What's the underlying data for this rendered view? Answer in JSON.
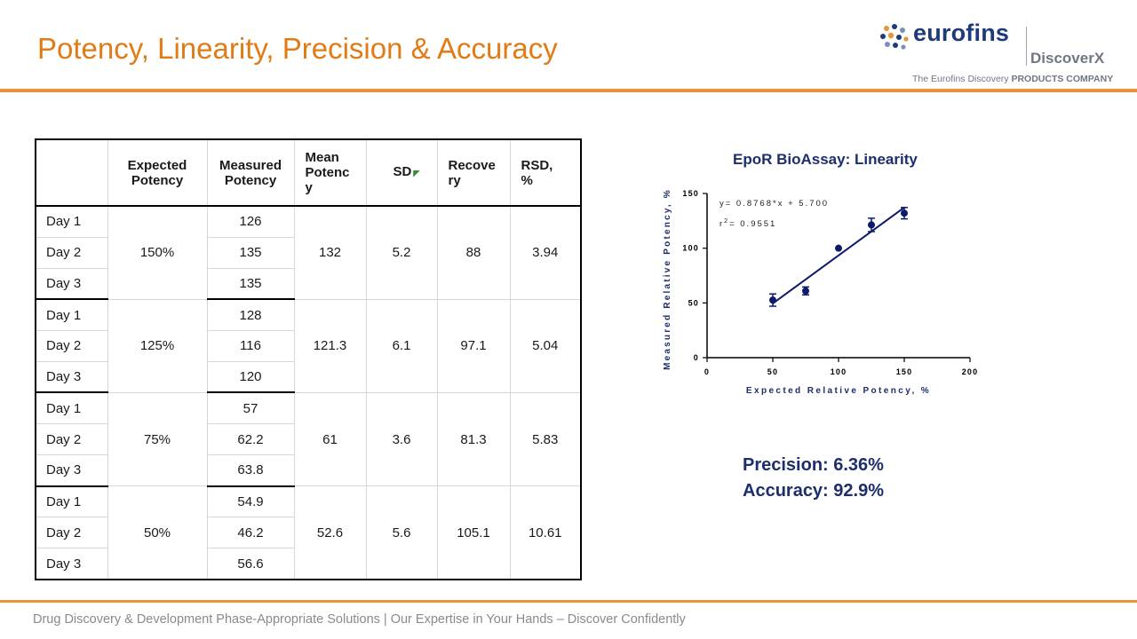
{
  "slide": {
    "title": "Potency, Linearity, Precision & Accuracy",
    "footer": "Drug Discovery & Development Phase-Appropriate Solutions | Our Expertise in Your Hands – Discover Confidently"
  },
  "logo": {
    "brand": "eurofins",
    "sub_brand": "DiscoverX",
    "tagline_prefix": "The Eurofins Discovery",
    "tagline_bold": "PRODUCTS COMPANY",
    "colors": {
      "brand": "#1f3a78",
      "dots": [
        "#e8943a",
        "#1f3a78",
        "#7a8fc0"
      ]
    }
  },
  "table": {
    "headers": {
      "day": "",
      "expected": "Expected Potency",
      "measured": "Measured Potency",
      "mean_lines": [
        "Mean",
        "Potenc",
        "y"
      ],
      "sd": "SD",
      "recovery_lines": [
        "Recove",
        "ry"
      ],
      "rsd_lines": [
        "RSD,",
        "%"
      ]
    },
    "groups": [
      {
        "expected": "150%",
        "mean": "132",
        "sd": "5.2",
        "recovery": "88",
        "rsd": "3.94",
        "rows": [
          {
            "day": "Day 1",
            "measured": "126"
          },
          {
            "day": "Day 2",
            "measured": "135"
          },
          {
            "day": "Day 3",
            "measured": "135"
          }
        ]
      },
      {
        "expected": "125%",
        "mean": "121.3",
        "sd": "6.1",
        "recovery": "97.1",
        "rsd": "5.04",
        "rows": [
          {
            "day": "Day 1",
            "measured": "128"
          },
          {
            "day": "Day 2",
            "measured": "116"
          },
          {
            "day": "Day 3",
            "measured": "120"
          }
        ]
      },
      {
        "expected": "75%",
        "mean": "61",
        "sd": "3.6",
        "recovery": "81.3",
        "rsd": "5.83",
        "rows": [
          {
            "day": "Day 1",
            "measured": "57"
          },
          {
            "day": "Day 2",
            "measured": "62.2"
          },
          {
            "day": "Day 3",
            "measured": "63.8"
          }
        ]
      },
      {
        "expected": "50%",
        "mean": "52.6",
        "sd": "5.6",
        "recovery": "105.1",
        "rsd": "10.61",
        "rows": [
          {
            "day": "Day 1",
            "measured": "54.9"
          },
          {
            "day": "Day 2",
            "measured": "46.2"
          },
          {
            "day": "Day 3",
            "measured": "56.6"
          }
        ]
      }
    ]
  },
  "chart_data": {
    "type": "scatter",
    "title": "EpoR BioAssay: Linearity",
    "xlabel": "Expected Relative Potency, %",
    "ylabel": "Measured Relative Potency, %",
    "xlim": [
      0,
      200
    ],
    "ylim": [
      0,
      150
    ],
    "xticks": [
      "0",
      "50",
      "100",
      "150",
      "200"
    ],
    "yticks": [
      "0",
      "50",
      "100",
      "150"
    ],
    "grid": false,
    "points": [
      {
        "x": 50,
        "y": 52.6,
        "err": 5.6
      },
      {
        "x": 75,
        "y": 61,
        "err": 3.6
      },
      {
        "x": 100,
        "y": 100,
        "err": 0
      },
      {
        "x": 125,
        "y": 121.3,
        "err": 6.1
      },
      {
        "x": 150,
        "y": 132,
        "err": 5.2
      }
    ],
    "fit": {
      "slope": 0.8768,
      "intercept": 5.7,
      "x_range": [
        50,
        150
      ]
    },
    "equation_label": "y= 0.8768*x + 5.700",
    "r2_prefix": "r",
    "r2_sup": "2",
    "r2_value": "= 0.9551",
    "color": "#0d1a6b"
  },
  "summary": {
    "precision": "Precision: 6.36%",
    "accuracy": "Accuracy: 92.9%"
  }
}
